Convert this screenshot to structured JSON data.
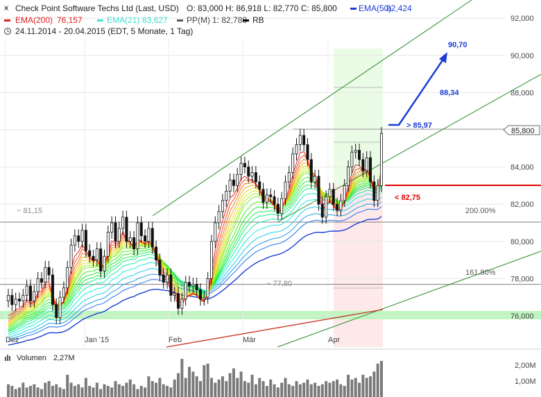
{
  "header": {
    "title": "Check Point Software Techs Ltd (Last, USD)",
    "ohlc": "O: 83,000  H: 86,918  L: 82,770  C: 85,800",
    "ema50_label": "EMA(50)",
    "ema50_value": "82,424",
    "ema200_label": "EMA(200)",
    "ema200_value": "76,157",
    "ema21_label": "EMA(21)",
    "ema21_value": "83,627",
    "pp_label": "PP(M)",
    "pp_value": "1: 82,788",
    "rb_label": "RB",
    "period": "24.11.2014 - 20.04.2015 (EDT, 5 Monate, 1 Tag)"
  },
  "colors": {
    "ema50": "#1a3cd6",
    "ema200": "#e02020",
    "ema21": "#40e0d0",
    "pp": "#555555",
    "rb": "#000000",
    "trend": "#2a8a2a",
    "target_arrow": "#1a3cd6",
    "support_line": "#e00000"
  },
  "annotations": {
    "level_81": "~ 81,15",
    "level_77": "~ 77,80",
    "fib_200": "200.00%",
    "fib_161": "161.80%",
    "above": "> 85,97",
    "below": "< 82,75",
    "target1": "88,34",
    "target2": "90,70",
    "last_price": "85,800"
  },
  "volume": {
    "label": "Volumen",
    "value": "2,27M",
    "ticks": [
      "2,00M",
      "1,00M"
    ],
    "values": [
      0.8,
      0.7,
      0.5,
      0.6,
      0.9,
      0.6,
      0.7,
      0.8,
      0.6,
      0.5,
      0.9,
      1.0,
      0.7,
      0.8,
      0.6,
      0.5,
      1.4,
      0.9,
      0.7,
      0.8,
      0.6,
      1.2,
      0.7,
      0.6,
      0.9,
      0.5,
      0.8,
      0.7,
      0.6,
      1.0,
      0.8,
      0.7,
      0.9,
      1.1,
      0.8,
      0.5,
      0.7,
      0.6,
      1.3,
      1.0,
      0.9,
      1.2,
      0.8,
      0.7,
      0.6,
      1.1,
      1.5,
      2.4,
      1.2,
      1.9,
      1.6,
      1.3,
      1.0,
      2.0,
      2.1,
      1.2,
      0.9,
      1.1,
      1.3,
      1.0,
      1.5,
      1.8,
      1.2,
      1.6,
      1.0,
      0.9,
      1.4,
      0.8,
      1.2,
      1.0,
      0.7,
      1.1,
      0.8,
      0.6,
      0.9,
      1.2,
      0.8,
      0.7,
      1.0,
      0.8,
      0.9,
      1.1,
      0.8,
      0.9,
      0.7,
      0.8,
      1.0,
      0.9,
      1.0,
      1.1,
      0.8,
      0.7,
      1.4,
      1.1,
      1.2,
      0.9,
      1.4,
      1.2,
      1.3,
      1.6,
      2.1,
      2.27
    ]
  },
  "chart_data": {
    "type": "candlestick",
    "y_axis_ticks": [
      "92,000",
      "90,000",
      "88,000",
      "86,000",
      "84,000",
      "82,000",
      "80,000",
      "78,000",
      "76,000"
    ],
    "x_axis_labels": [
      "Dez",
      "Jan '15",
      "Feb",
      "Mär",
      "Apr"
    ],
    "ylim": [
      75.0,
      93.0
    ],
    "close": [
      77.1,
      76.6,
      76.9,
      76.8,
      77.1,
      77.6,
      76.8,
      77.3,
      78.0,
      77.8,
      78.6,
      78.2,
      76.6,
      75.9,
      77.0,
      77.5,
      78.6,
      79.8,
      80.3,
      80.0,
      80.6,
      79.5,
      79.2,
      79.0,
      79.6,
      78.4,
      79.2,
      80.5,
      81.0,
      80.0,
      80.7,
      81.3,
      80.0,
      80.2,
      79.6,
      81.0,
      80.3,
      80.0,
      80.7,
      79.7,
      79.0,
      78.2,
      77.8,
      78.2,
      77.1,
      77.2,
      76.4,
      76.9,
      77.8,
      77.6,
      77.7,
      77.4,
      76.9,
      77.0,
      78.0,
      80.0,
      81.0,
      81.6,
      82.2,
      82.7,
      83.3,
      83.0,
      83.6,
      84.2,
      84.0,
      83.5,
      83.7,
      83.2,
      82.8,
      82.1,
      82.5,
      82.4,
      82.0,
      81.5,
      82.3,
      83.2,
      83.7,
      84.7,
      85.2,
      85.7,
      85.2,
      84.4,
      83.2,
      83.5,
      82.0,
      81.3,
      82.4,
      82.8,
      82.0,
      81.7,
      82.2,
      83.0,
      84.0,
      84.8,
      84.9,
      84.4,
      83.8,
      84.5,
      83.2,
      82.2,
      83.0,
      85.8
    ],
    "ema21_last": 83.627,
    "ema50_last": 82.424,
    "ema200_last": 76.157,
    "support_level": 82.75,
    "resistance_level": 85.97,
    "targets": [
      88.34,
      90.7
    ],
    "reference_levels": [
      81.15,
      77.8
    ],
    "fib_levels": {
      "200.00%": 81.1,
      "161.80%": 78.0
    },
    "grid": true
  }
}
